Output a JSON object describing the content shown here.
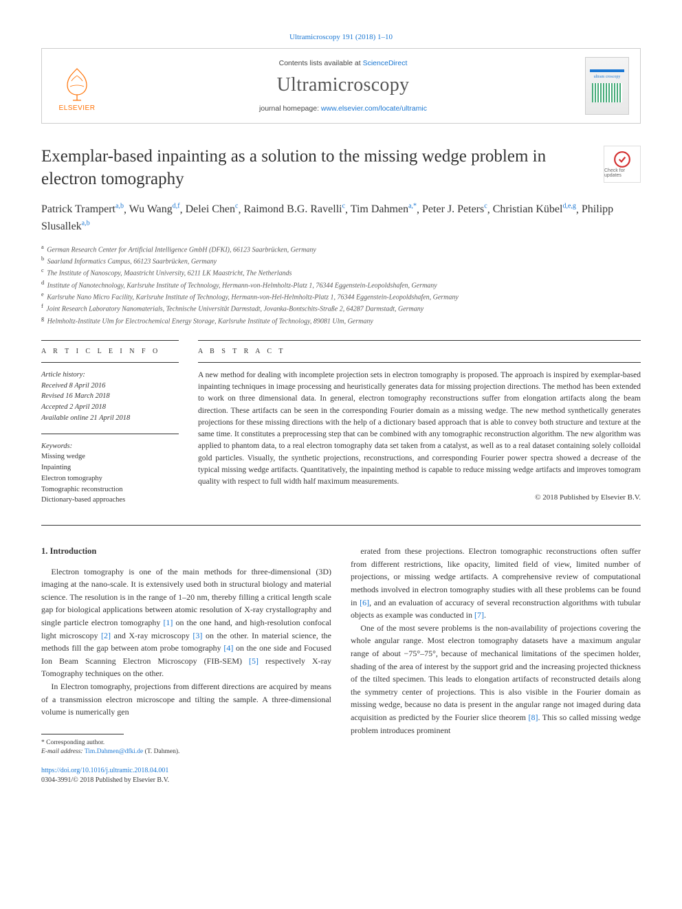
{
  "journal_ref": "Ultramicroscopy 191 (2018) 1–10",
  "header": {
    "elsevier_label": "ELSEVIER",
    "contents_prefix": "Contents lists available at ",
    "contents_link": "ScienceDirect",
    "journal_name": "Ultramicroscopy",
    "homepage_prefix": "journal homepage: ",
    "homepage_link": "www.elsevier.com/locate/ultramic",
    "cover_text": "ultram croscopy"
  },
  "check_updates_label": "Check for updates",
  "title": "Exemplar-based inpainting as a solution to the missing wedge problem in electron tomography",
  "authors_html": "Patrick Trampert|a,b|, Wu Wang|d,f|, Delei Chen|c|, Raimond B.G. Ravelli|c|, Tim Dahmen|a,*|, Peter J. Peters|c|, Christian Kübel|d,e,g|, Philipp Slusallek|a,b|",
  "authors": [
    {
      "name": "Patrick Trampert",
      "sup": "a,b"
    },
    {
      "name": "Wu Wang",
      "sup": "d,f"
    },
    {
      "name": "Delei Chen",
      "sup": "c"
    },
    {
      "name": "Raimond B.G. Ravelli",
      "sup": "c"
    },
    {
      "name": "Tim Dahmen",
      "sup": "a,*"
    },
    {
      "name": "Peter J. Peters",
      "sup": "c"
    },
    {
      "name": "Christian Kübel",
      "sup": "d,e,g"
    },
    {
      "name": "Philipp Slusallek",
      "sup": "a,b"
    }
  ],
  "affiliations": [
    {
      "key": "a",
      "text": "German Research Center for Artificial Intelligence GmbH (DFKI), 66123 Saarbrücken, Germany"
    },
    {
      "key": "b",
      "text": "Saarland Informatics Campus, 66123 Saarbrücken, Germany"
    },
    {
      "key": "c",
      "text": "The Institute of Nanoscopy, Maastricht University, 6211 LK Maastricht, The Netherlands"
    },
    {
      "key": "d",
      "text": "Institute of Nanotechnology, Karlsruhe Institute of Technology, Hermann-von-Helmholtz-Platz 1, 76344 Eggenstein-Leopoldshafen, Germany"
    },
    {
      "key": "e",
      "text": "Karlsruhe Nano Micro Facility, Karlsruhe Institute of Technology, Hermann-von-Hel-Helmholtz-Platz 1, 76344 Eggenstein-Leopoldshafen, Germany"
    },
    {
      "key": "f",
      "text": "Joint Research Laboratory Nanomaterials, Technische Universität Darmstadt, Jovanka-Bontschits-Straße 2, 64287 Darmstadt, Germany"
    },
    {
      "key": "g",
      "text": "Helmholtz-Institute Ulm for Electrochemical Energy Storage, Karlsruhe Institute of Technology, 89081 Ulm, Germany"
    }
  ],
  "info_heading": "A R T I C L E   I N F O",
  "abstract_heading": "A B S T R A C T",
  "history": {
    "label": "Article history:",
    "received": "Received 8 April 2016",
    "revised": "Revised 16 March 2018",
    "accepted": "Accepted 2 April 2018",
    "online": "Available online 21 April 2018"
  },
  "keywords_label": "Keywords:",
  "keywords": [
    "Missing wedge",
    "Inpainting",
    "Electron tomography",
    "Tomographic reconstruction",
    "Dictionary-based approaches"
  ],
  "abstract": "A new method for dealing with incomplete projection sets in electron tomography is proposed. The approach is inspired by exemplar-based inpainting techniques in image processing and heuristically generates data for missing projection directions. The method has been extended to work on three dimensional data. In general, electron tomography reconstructions suffer from elongation artifacts along the beam direction. These artifacts can be seen in the corresponding Fourier domain as a missing wedge. The new method synthetically generates projections for these missing directions with the help of a dictionary based approach that is able to convey both structure and texture at the same time. It constitutes a preprocessing step that can be combined with any tomographic reconstruction algorithm. The new algorithm was applied to phantom data, to a real electron tomography data set taken from a catalyst, as well as to a real dataset containing solely colloidal gold particles. Visually, the synthetic projections, reconstructions, and corresponding Fourier power spectra showed a decrease of the typical missing wedge artifacts. Quantitatively, the inpainting method is capable to reduce missing wedge artifacts and improves tomogram quality with respect to full width half maximum measurements.",
  "copyright": "© 2018 Published by Elsevier B.V.",
  "section1_heading": "1. Introduction",
  "body": {
    "p1": "Electron tomography is one of the main methods for three-dimensional (3D) imaging at the nano-scale. It is extensively used both in structural biology and material science. The resolution is in the range of 1–20 nm, thereby filling a critical length scale gap for biological applications between atomic resolution of X-ray crystallography and single particle electron tomography [1] on the one hand, and high-resolution confocal light microscopy [2] and X-ray microscopy [3] on the other. In material science, the methods fill the gap between atom probe tomography [4] on the one side and Focused Ion Beam Scanning Electron Microscopy (FIB-SEM) [5] respectively X-ray Tomography techniques on the other.",
    "p2": "In Electron tomography, projections from different directions are acquired by means of a transmission electron microscope and tilting the sample. A three-dimensional volume is numerically gen",
    "p3_cont": "erated from these projections. Electron tomographic reconstructions often suffer from different restrictions, like opacity, limited field of view, limited number of projections, or missing wedge artifacts. A comprehensive review of computational methods involved in electron tomography studies with all these problems can be found in [6], and an evaluation of accuracy of several reconstruction algorithms with tubular objects as example was conducted in [7].",
    "p4": "One of the most severe problems is the non-availability of projections covering the whole angular range. Most electron tomography datasets have a maximum angular range of about −75°–75°, because of mechanical limitations of the specimen holder, shading of the area of interest by the support grid and the increasing projected thickness of the tilted specimen. This leads to elongation artifacts of reconstructed details along the symmetry center of projections. This is also visible in the Fourier domain as missing wedge, because no data is present in the angular range not imaged during data acquisition as predicted by the Fourier slice theorem [8]. This so called missing wedge problem introduces prominent"
  },
  "footnote": {
    "corr_label": "* Corresponding author.",
    "email_label": "E-mail address:",
    "email": "Tim.Dahmen@dfki.de",
    "email_who": "(T. Dahmen)."
  },
  "footer": {
    "doi": "https://doi.org/10.1016/j.ultramic.2018.04.001",
    "issn_line": "0304-3991/© 2018 Published by Elsevier B.V."
  },
  "colors": {
    "link": "#1976d2",
    "elsevier_orange": "#ff6f00",
    "text": "#333333",
    "muted": "#555555"
  }
}
